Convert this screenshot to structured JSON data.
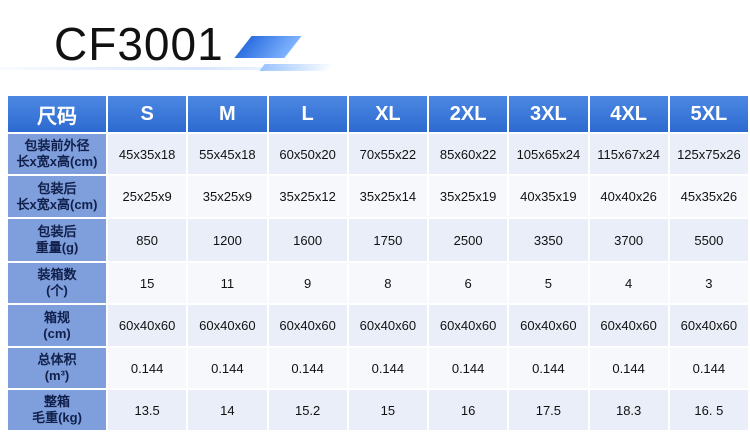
{
  "title": "CF3001",
  "table": {
    "corner": "尺码",
    "sizes": [
      "S",
      "M",
      "L",
      "XL",
      "2XL",
      "3XL",
      "4XL",
      "5XL"
    ],
    "rows": [
      {
        "label": [
          "包装前外径",
          "长x宽x高(cm)"
        ],
        "values": [
          "45x35x18",
          "55x45x18",
          "60x50x20",
          "70x55x22",
          "85x60x22",
          "105x65x24",
          "115x67x24",
          "125x75x26"
        ]
      },
      {
        "label": [
          "包装后",
          "长x宽x高(cm)"
        ],
        "values": [
          "25x25x9",
          "35x25x9",
          "35x25x12",
          "35x25x14",
          "35x25x19",
          "40x35x19",
          "40x40x26",
          "45x35x26"
        ]
      },
      {
        "label": [
          "包装后",
          "重量(g)"
        ],
        "values": [
          "850",
          "1200",
          "1600",
          "1750",
          "2500",
          "3350",
          "3700",
          "5500"
        ]
      },
      {
        "label": [
          "装箱数",
          "(个)"
        ],
        "values": [
          "15",
          "11",
          "9",
          "8",
          "6",
          "5",
          "4",
          "3"
        ]
      },
      {
        "label": [
          "箱规",
          "(cm)"
        ],
        "values": [
          "60x40x60",
          "60x40x60",
          "60x40x60",
          "60x40x60",
          "60x40x60",
          "60x40x60",
          "60x40x60",
          "60x40x60"
        ]
      },
      {
        "label": [
          "总体积",
          "(m³)"
        ],
        "values": [
          "0.144",
          "0.144",
          "0.144",
          "0.144",
          "0.144",
          "0.144",
          "0.144",
          "0.144"
        ]
      },
      {
        "label": [
          "整箱",
          "毛重(kg)"
        ],
        "values": [
          "13.5",
          "14",
          "15.2",
          "15",
          "16",
          "17.5",
          "18.3",
          "16. 5"
        ]
      }
    ]
  }
}
